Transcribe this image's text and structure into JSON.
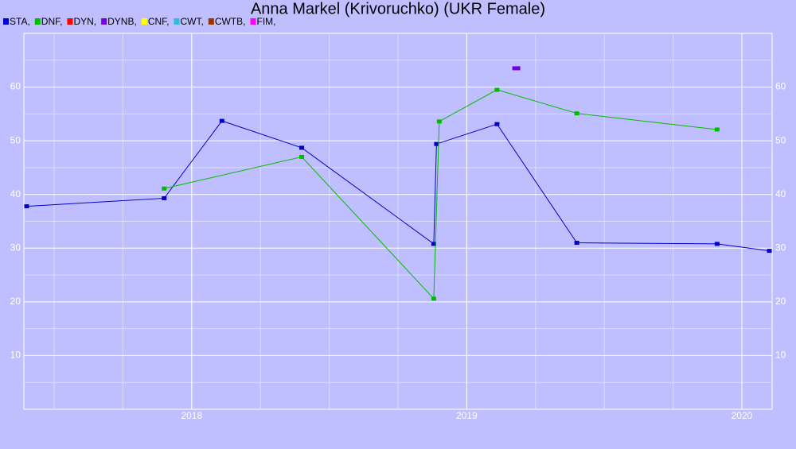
{
  "chart_data": {
    "type": "line",
    "title": "Anna Markel (Krivoruchko) (UKR Female)",
    "xlim": [
      2017.39,
      2020.11
    ],
    "xticks": [
      2018,
      2019,
      2020
    ],
    "ylim": [
      0,
      70
    ],
    "yticks": [
      10,
      20,
      30,
      40,
      50,
      60
    ],
    "grid": true,
    "series": [
      {
        "name": "STA,",
        "color": "#0000cc",
        "x": [
          2017.4,
          2017.9,
          2018.11,
          2018.4,
          2018.88,
          2018.89,
          2019.11,
          2019.4,
          2019.91,
          2020.1
        ],
        "values": [
          37.8,
          39.3,
          53.7,
          48.7,
          30.8,
          49.4,
          53.1,
          31.0,
          30.8,
          29.5
        ]
      },
      {
        "name": "DNF,",
        "color": "#00bb00",
        "x": [
          2017.9,
          2018.4,
          2018.88,
          2018.9,
          2019.11,
          2019.4,
          2019.91
        ],
        "values": [
          41.1,
          47.0,
          20.6,
          53.6,
          59.5,
          55.1,
          52.1
        ]
      },
      {
        "name": "DYN,",
        "color": "#ff0000",
        "x": [],
        "values": []
      },
      {
        "name": "DYNB,",
        "color": "#7700dd",
        "x": [
          2019.18
        ],
        "values": [
          63.5
        ]
      },
      {
        "name": "CNF,",
        "color": "#ffff00",
        "x": [],
        "values": []
      },
      {
        "name": "CWT,",
        "color": "#33bbdd",
        "x": [],
        "values": []
      },
      {
        "name": "CWTB,",
        "color": "#993300",
        "x": [],
        "values": []
      },
      {
        "name": "FIM,",
        "color": "#ff00ff",
        "x": [],
        "values": []
      }
    ]
  }
}
